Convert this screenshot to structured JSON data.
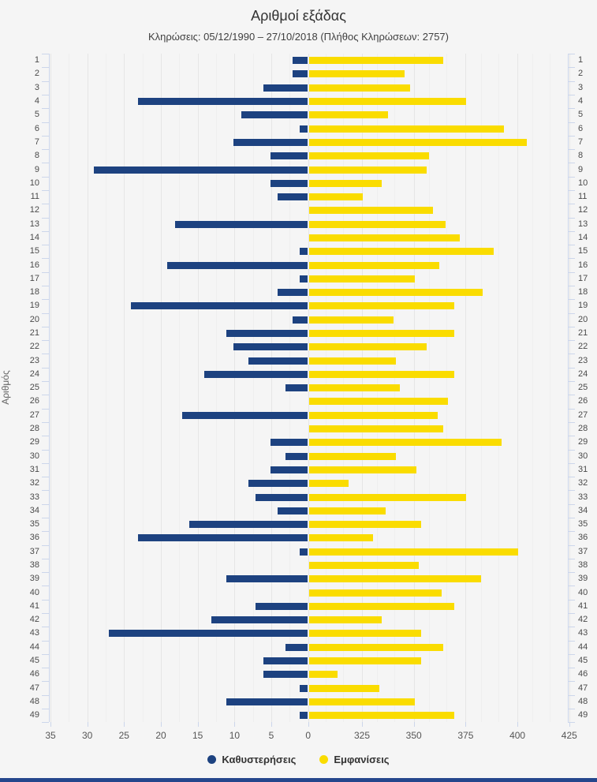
{
  "title": "Αριθμοί εξάδας",
  "subtitle": "Κληρώσεις: 05/12/1990 – 27/10/2018 (Πλήθος Κληρώσεων: 2757)",
  "y_axis_label": "Αριθμός",
  "legend": [
    {
      "label": "Καθυστερήσεις",
      "color": "#1d4280"
    },
    {
      "label": "Εμφανίσεις",
      "color": "#fadc00"
    }
  ],
  "colors": {
    "background": "#f5f5f5",
    "delay_bar": "#1d4280",
    "appearance_bar": "#fadc00",
    "gridline": "#e6e6e6",
    "axis_line": "#ccd6eb",
    "bottom_accent": "#24468c"
  },
  "chart_data": {
    "type": "bar",
    "orientation": "horizontal-diverging",
    "title": "Αριθμοί εξάδας",
    "subtitle": "Κληρώσεις: 05/12/1990 – 27/10/2018 (Πλήθος Κληρώσεων: 2757)",
    "ylabel": "Αριθμός",
    "grid": true,
    "legend_position": "bottom",
    "categories": [
      1,
      2,
      3,
      4,
      5,
      6,
      7,
      8,
      9,
      10,
      11,
      12,
      13,
      14,
      15,
      16,
      17,
      18,
      19,
      20,
      21,
      22,
      23,
      24,
      25,
      26,
      27,
      28,
      29,
      30,
      31,
      32,
      33,
      34,
      35,
      36,
      37,
      38,
      39,
      40,
      41,
      42,
      43,
      44,
      45,
      46,
      47,
      48,
      49
    ],
    "left_axis": {
      "ticks": [
        35,
        30,
        25,
        20,
        15,
        10,
        5,
        0
      ],
      "max": 35,
      "min": 0
    },
    "right_axis": {
      "ticks": [
        325,
        350,
        375,
        400,
        425
      ],
      "plot_min": 299,
      "max": 425
    },
    "series": [
      {
        "name": "Καθυστερήσεις",
        "direction": "left",
        "color": "#1d4280",
        "values": [
          2,
          2,
          6,
          23,
          9,
          1,
          10,
          5,
          29,
          5,
          4,
          0,
          18,
          0,
          1,
          19,
          1,
          4,
          24,
          2,
          11,
          10,
          8,
          14,
          3,
          0,
          17,
          0,
          5,
          3,
          5,
          8,
          7,
          4,
          16,
          23,
          1,
          0,
          11,
          0,
          7,
          13,
          27,
          3,
          6,
          6,
          1,
          11,
          1
        ]
      },
      {
        "name": "Εμφανίσεις",
        "direction": "right",
        "color": "#fadc00",
        "values": [
          364,
          345,
          348,
          375,
          337,
          393,
          404,
          357,
          356,
          334,
          325,
          359,
          365,
          372,
          388,
          362,
          350,
          383,
          369,
          340,
          369,
          356,
          341,
          369,
          343,
          366,
          361,
          364,
          392,
          341,
          351,
          318,
          375,
          336,
          353,
          330,
          400,
          352,
          382,
          363,
          369,
          334,
          353,
          364,
          353,
          313,
          333,
          350,
          369
        ]
      }
    ]
  }
}
